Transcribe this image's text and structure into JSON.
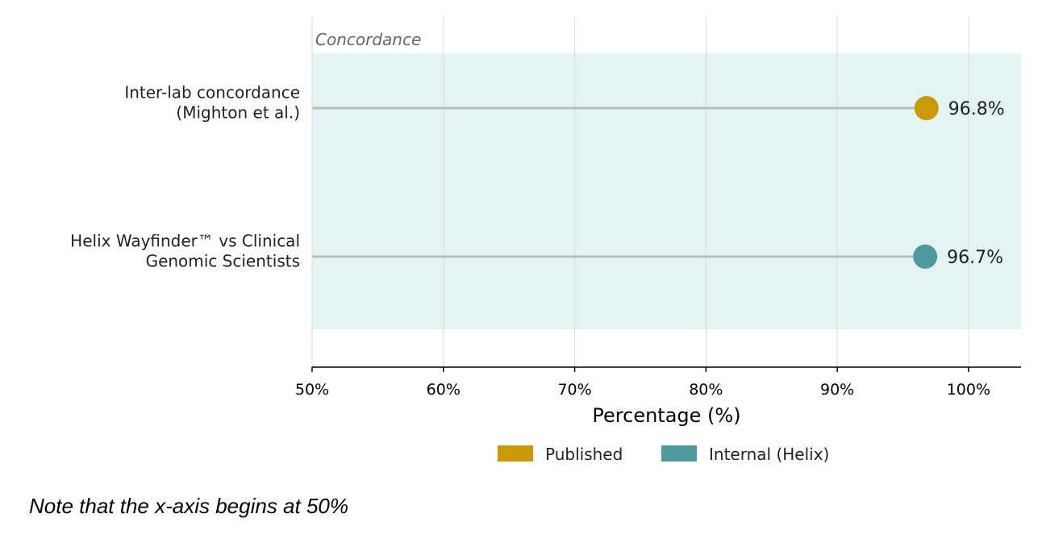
{
  "chart_data": {
    "type": "dot",
    "group_label": "Concordance",
    "categories": [
      [
        "Inter-lab concordance",
        "(Mighton et al.)"
      ],
      [
        "Helix Wayfinder™ vs Clinical",
        "Genomic Scientists"
      ]
    ],
    "values": [
      96.8,
      96.7
    ],
    "value_labels": [
      "96.8%",
      "96.7%"
    ],
    "point_series": [
      "Published",
      "Internal (Helix)"
    ],
    "xlabel": "Percentage (%)",
    "xlim": [
      50,
      104
    ],
    "xticks": [
      50,
      60,
      70,
      80,
      90,
      100
    ],
    "xtick_labels": [
      "50%",
      "60%",
      "70%",
      "80%",
      "90%",
      "100%"
    ],
    "grid": "vertical",
    "legend": {
      "placement": "bottom-center",
      "entries": [
        {
          "label": "Published",
          "color": "#C9990A"
        },
        {
          "label": "Internal (Helix)",
          "color": "#4E9B9D"
        }
      ]
    },
    "colors": {
      "band": "#E4F3F3",
      "stem": "#BBBBBB",
      "grid": "#DCDCDC",
      "Published": "#C9990A",
      "Internal (Helix)": "#4E9B9D"
    }
  },
  "note": "Note that the x-axis begins at 50%"
}
